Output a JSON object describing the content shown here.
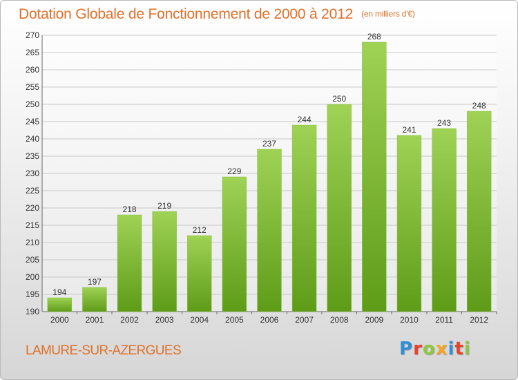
{
  "title": "Dotation Globale de Fonctionnement de 2000 à 2012",
  "subtitle": "(en milliers d'€)",
  "commune": "LAMURE-SUR-AZERGUES",
  "logo": {
    "letters": [
      "P",
      "r",
      "o",
      "x",
      "i",
      "t",
      "i"
    ],
    "colors": [
      "#2f8fd8",
      "#e8412c",
      "#8dc63f",
      "#f6a623",
      "#2f8fd8",
      "#e8412c",
      "#8dc63f"
    ]
  },
  "colors": {
    "title": "#e0702a",
    "bar_top": "#9fd255",
    "bar_bottom": "#5e9c18",
    "grid": "#c8c8c8"
  },
  "chart_data": {
    "type": "bar",
    "categories": [
      "2000",
      "2001",
      "2002",
      "2003",
      "2004",
      "2005",
      "2006",
      "2007",
      "2008",
      "2009",
      "2010",
      "2011",
      "2012"
    ],
    "values": [
      194,
      197,
      218,
      219,
      212,
      229,
      237,
      244,
      250,
      268,
      241,
      243,
      248
    ],
    "ylim": [
      190,
      270
    ],
    "yticks": [
      190,
      195,
      200,
      205,
      210,
      215,
      220,
      225,
      230,
      235,
      240,
      245,
      250,
      255,
      260,
      265,
      270
    ],
    "grid": true,
    "data_labels": true
  }
}
